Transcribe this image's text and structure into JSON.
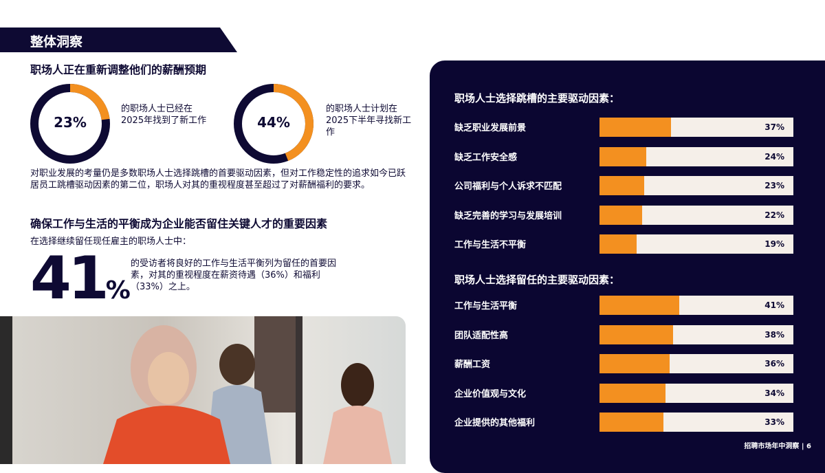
{
  "section_title": "整体洞察",
  "heading1": "职场人正在重新调整他们的薪酬预期",
  "donuts": [
    {
      "value": 23,
      "label": "23%",
      "text": "的职场人士已经在2025年找到了新工作"
    },
    {
      "value": 44,
      "label": "44%",
      "text": "的职场人士计划在2025下半年寻找新工作"
    }
  ],
  "paragraph": "对职业发展的考量仍是多数职场人士选择跳槽的首要驱动因素，但对工作稳定性的追求如今已跃居员工跳槽驱动因素的第二位，职场人对其的重视程度甚至超过了对薪酬福利的要求。",
  "heading2": "确保工作与生活的平衡成为企业能否留住关键人才的重要因素",
  "subtext": "在选择继续留任现任雇主的职场人士中：",
  "big_stat": {
    "number": "41",
    "unit": "%",
    "text": "的受访者将良好的工作与生活平衡列为留任的首要因素，对其的重视程度在薪资待遇（36%）和福利（33%）之上。"
  },
  "colors": {
    "navy": "#0e0a33",
    "orange": "#f39020",
    "track": "#f5efe9"
  },
  "chart_data": [
    {
      "type": "bar",
      "title": "职场人士选择跳槽的主要驱动因素：",
      "categories": [
        "缺乏职业发展前景",
        "缺乏工作安全感",
        "公司福利与个人诉求不匹配",
        "缺乏完善的学习与发展培训",
        "工作与生活不平衡"
      ],
      "values": [
        37,
        24,
        23,
        22,
        19
      ],
      "labels": [
        "37%",
        "24%",
        "23%",
        "22%",
        "19%"
      ],
      "xlim": [
        0,
        100
      ]
    },
    {
      "type": "bar",
      "title": "职场人士选择留任的主要驱动因素：",
      "categories": [
        "工作与生活平衡",
        "团队适配性高",
        "薪酬工资",
        "企业价值观与文化",
        "企业提供的其他福利"
      ],
      "values": [
        41,
        38,
        36,
        34,
        33
      ],
      "labels": [
        "41%",
        "38%",
        "36%",
        "34%",
        "33%"
      ],
      "xlim": [
        0,
        100
      ]
    }
  ],
  "footer": "招聘市场年中洞察 | 6"
}
